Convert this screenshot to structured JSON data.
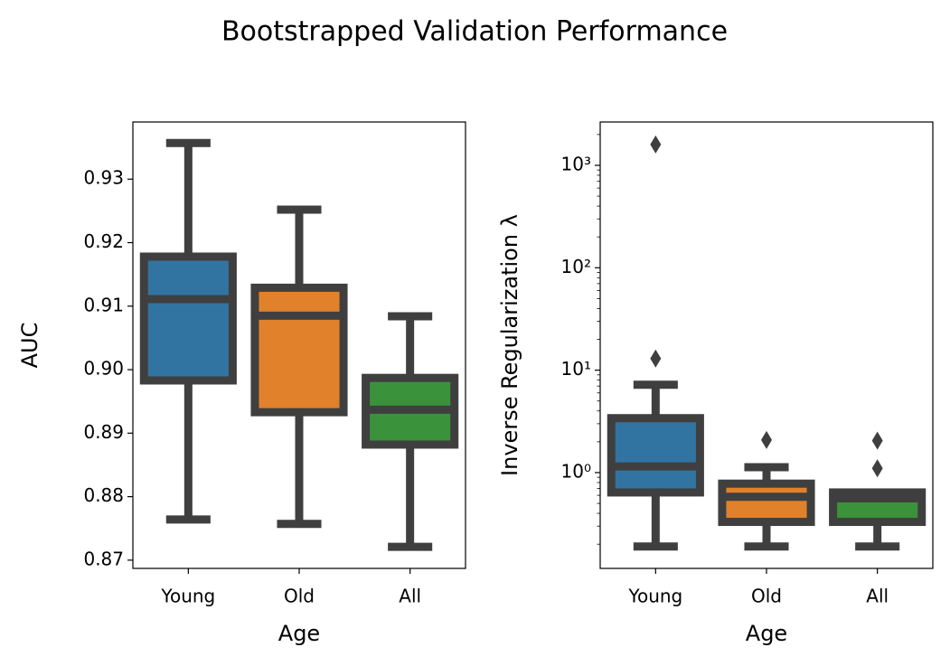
{
  "title": "Bootstrapped Validation Performance",
  "chart_data": [
    {
      "type": "box",
      "xlabel": "Age",
      "ylabel": "AUC",
      "categories": [
        "Young",
        "Old",
        "All"
      ],
      "colors": [
        "#3274a1",
        "#e1812c",
        "#3a923a"
      ],
      "edge_color": "#3f3f3f",
      "boxes": [
        {
          "min": 0.8764,
          "q1": 0.8983,
          "median": 0.9111,
          "q3": 0.9178,
          "max": 0.9357,
          "outliers": []
        },
        {
          "min": 0.8757,
          "q1": 0.8933,
          "median": 0.9085,
          "q3": 0.9129,
          "max": 0.9252,
          "outliers": []
        },
        {
          "min": 0.8721,
          "q1": 0.8882,
          "median": 0.8937,
          "q3": 0.8987,
          "max": 0.9084,
          "outliers": []
        }
      ],
      "ylim": [
        0.8687,
        0.939
      ],
      "yticks": [
        0.87,
        0.88,
        0.89,
        {
          "value": 0.9,
          "label": "0.90"
        },
        0.91,
        0.92,
        0.93
      ],
      "log_y": false
    },
    {
      "type": "box",
      "xlabel": "Age",
      "ylabel": "Inverse Regularization λ",
      "categories": [
        "Young",
        "Old",
        "All"
      ],
      "colors": [
        "#3274a1",
        "#e1812c",
        "#3a923a"
      ],
      "edge_color": "#3f3f3f",
      "boxes": [
        {
          "min": 0.19,
          "q1": 0.64,
          "median": 1.15,
          "q3": 3.4,
          "max": 7.2,
          "outliers": [
            1600,
            13
          ]
        },
        {
          "min": 0.19,
          "q1": 0.33,
          "median": 0.58,
          "q3": 0.78,
          "max": 1.13,
          "outliers": [
            2.08
          ]
        },
        {
          "min": 0.19,
          "q1": 0.33,
          "median": 0.56,
          "q3": 0.64,
          "max": 0.64,
          "outliers": [
            2.05,
            1.1
          ]
        }
      ],
      "ylim": [
        0.116,
        2650
      ],
      "yticks": [
        {
          "value": 1,
          "label": "10⁰"
        },
        {
          "value": 10,
          "label": "10¹"
        },
        {
          "value": 100,
          "label": "10²"
        },
        {
          "value": 1000,
          "label": "10³"
        }
      ],
      "yminorticks": [
        0.2,
        0.3,
        0.4,
        0.5,
        0.6,
        0.7,
        0.8,
        0.9,
        2,
        3,
        4,
        5,
        6,
        7,
        8,
        9,
        20,
        30,
        40,
        50,
        60,
        70,
        80,
        90,
        200,
        300,
        400,
        500,
        600,
        700,
        800,
        900,
        2000
      ],
      "log_y": true
    }
  ]
}
